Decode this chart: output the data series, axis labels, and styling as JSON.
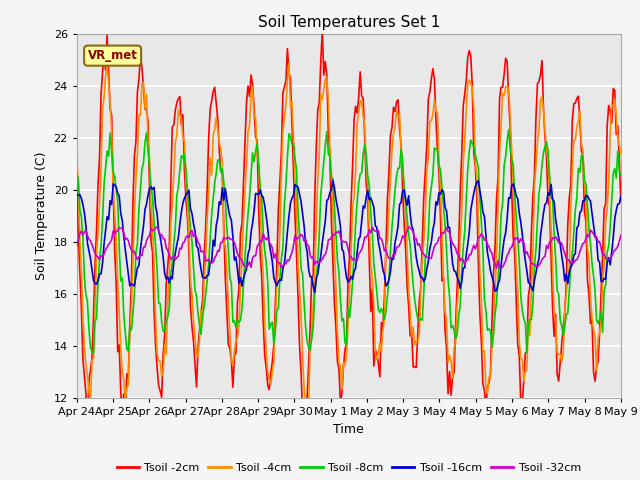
{
  "title": "Soil Temperatures Set 1",
  "xlabel": "Time",
  "ylabel": "Soil Temperature (C)",
  "ylim": [
    12,
    26
  ],
  "series": [
    "Tsoil -2cm",
    "Tsoil -4cm",
    "Tsoil -8cm",
    "Tsoil -16cm",
    "Tsoil -32cm"
  ],
  "colors": [
    "#ff0000",
    "#ff8c00",
    "#00cc00",
    "#0000cd",
    "#cc00cc"
  ],
  "x_tick_labels": [
    "Apr 24",
    "Apr 25",
    "Apr 26",
    "Apr 27",
    "Apr 28",
    "Apr 29",
    "Apr 30",
    "May 1",
    "May 2",
    "May 3",
    "May 4",
    "May 5",
    "May 6",
    "May 7",
    "May 8",
    "May 9"
  ],
  "annotation_text": "VR_met",
  "bg_color": "#e8e8e8",
  "linewidth": 1.2
}
